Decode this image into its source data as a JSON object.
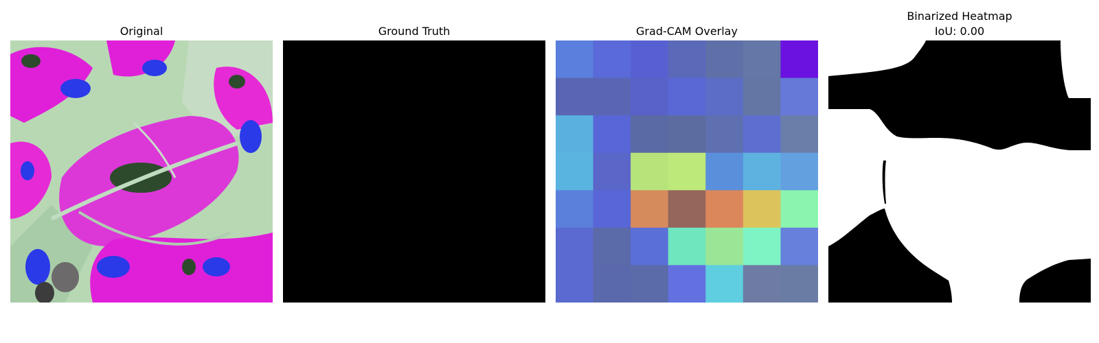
{
  "panels": {
    "original": {
      "title": "Original"
    },
    "ground_truth": {
      "title": "Ground Truth"
    },
    "gradcam": {
      "title": "Grad-CAM Overlay",
      "grid_rows": 7,
      "grid_cols": 7,
      "cells": [
        [
          "#5a7fdc",
          "#5a6ad8",
          "#5760d0",
          "#5a69b8",
          "#5f6fa8",
          "#6477a6",
          "#6b12e0"
        ],
        [
          "#5a66b4",
          "#5a66b4",
          "#5862c8",
          "#5a68d6",
          "#5b6dc6",
          "#6477a4",
          "#6679d8"
        ],
        [
          "#5ab1e0",
          "#5966d8",
          "#5a6aa4",
          "#5d6ca0",
          "#5f70b0",
          "#5d6ed0",
          "#6a7eaa"
        ],
        [
          "#5ab4e0",
          "#5a66c8",
          "#b6e47a",
          "#bde97a",
          "#5a8fdc",
          "#5eb2e0",
          "#62a0e0"
        ],
        [
          "#5a80dc",
          "#5966d8",
          "#d68b5c",
          "#94665c",
          "#dc865c",
          "#dcc35c",
          "#8bf4ae"
        ],
        [
          "#5a6ad0",
          "#5b6aa8",
          "#5a6fd8",
          "#6fe6be",
          "#9ae696",
          "#7ef4c4",
          "#6680dc"
        ],
        [
          "#5a6ad0",
          "#5a68ac",
          "#5b6aa8",
          "#6270e0",
          "#5ecee0",
          "#6e7ca4",
          "#6a7ca4"
        ]
      ]
    },
    "binarized": {
      "title_line1": "Binarized Heatmap",
      "title_line2": "IoU: 0.00"
    }
  }
}
